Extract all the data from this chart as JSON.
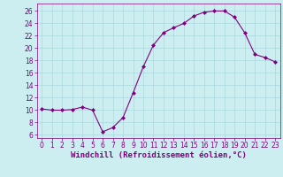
{
  "x": [
    0,
    1,
    2,
    3,
    4,
    5,
    6,
    7,
    8,
    9,
    10,
    11,
    12,
    13,
    14,
    15,
    16,
    17,
    18,
    19,
    20,
    21,
    22,
    23
  ],
  "y": [
    10.2,
    10.0,
    10.0,
    10.1,
    10.5,
    10.0,
    6.5,
    7.2,
    8.8,
    12.8,
    17.0,
    20.5,
    22.5,
    23.3,
    24.0,
    25.2,
    25.8,
    26.0,
    26.0,
    25.0,
    22.5,
    19.0,
    18.5,
    17.8
  ],
  "line_color": "#800080",
  "marker": "D",
  "marker_size": 2,
  "bg_color": "#cceef0",
  "grid_color": "#aad8dc",
  "xlabel": "Windchill (Refroidissement éolien,°C)",
  "xlim": [
    -0.5,
    23.5
  ],
  "ylim": [
    5.5,
    27.2
  ],
  "yticks": [
    6,
    8,
    10,
    12,
    14,
    16,
    18,
    20,
    22,
    24,
    26
  ],
  "xticks": [
    0,
    1,
    2,
    3,
    4,
    5,
    6,
    7,
    8,
    9,
    10,
    11,
    12,
    13,
    14,
    15,
    16,
    17,
    18,
    19,
    20,
    21,
    22,
    23
  ],
  "tick_color": "#800080",
  "label_color": "#800080",
  "label_fontsize": 6.5,
  "tick_fontsize": 5.5
}
